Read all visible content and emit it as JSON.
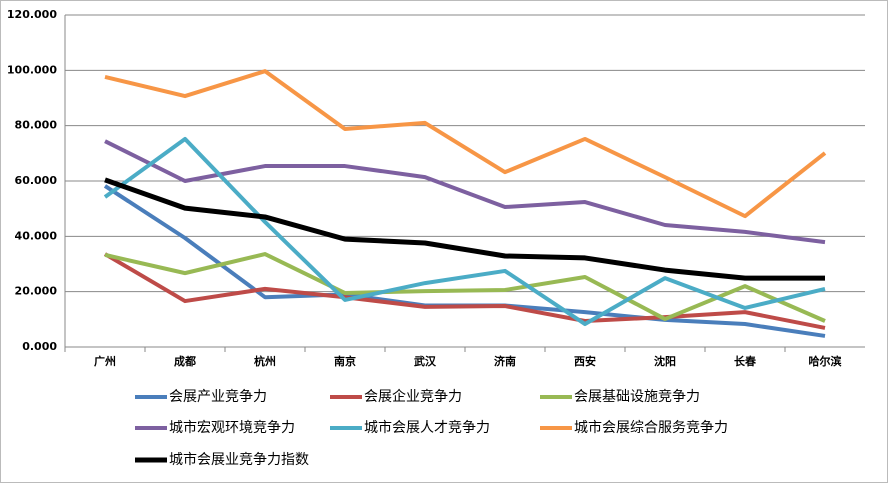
{
  "chart_data": {
    "type": "line",
    "categories": [
      "广州",
      "成都",
      "杭州",
      "南京",
      "武汉",
      "济南",
      "西安",
      "沈阳",
      "长春",
      "哈尔滨"
    ],
    "series": [
      {
        "name": "会展产业竞争力",
        "color": "#4a7ebb",
        "values": [
          58.2,
          39.4,
          18,
          19,
          15,
          15,
          12.6,
          9.8,
          8.3,
          4
        ]
      },
      {
        "name": "会展企业竞争力",
        "color": "#be4b48",
        "values": [
          33.6,
          16.6,
          21,
          18,
          14.5,
          14.8,
          9.4,
          10.8,
          12.6,
          6.9
        ]
      },
      {
        "name": "会展基础设施竞争力",
        "color": "#98b954",
        "values": [
          33.3,
          26.7,
          33.6,
          19.5,
          20.2,
          20.6,
          25.3,
          10.1,
          22,
          9.4
        ]
      },
      {
        "name": "城市宏观环境竞争力",
        "color": "#7d60a0",
        "values": [
          74.4,
          60,
          65.4,
          65.4,
          61.4,
          50.6,
          52.4,
          44.1,
          41.6,
          37.9
        ]
      },
      {
        "name": "城市会展人才竞争力",
        "color": "#4bacc6",
        "values": [
          54.2,
          75.2,
          45.2,
          17,
          23.1,
          27.5,
          8.3,
          24.9,
          14.1,
          21
        ]
      },
      {
        "name": "城市会展综合服务竞争力",
        "color": "#f79646",
        "values": [
          97.6,
          90.7,
          99.7,
          78.8,
          81,
          63.2,
          75.2,
          61.4,
          47.3,
          70.1
        ]
      },
      {
        "name": "城市会展业竞争力指数",
        "color": "#000000",
        "values": [
          60.4,
          50.2,
          47,
          39,
          37.6,
          32.9,
          32.2,
          27.8,
          24.9,
          24.9
        ]
      }
    ],
    "ylim": [
      0,
      120
    ],
    "yticks": [
      {
        "value": 0,
        "label": "0.000"
      },
      {
        "value": 20,
        "label": "20.000"
      },
      {
        "value": 40,
        "label": "40.000"
      },
      {
        "value": 60,
        "label": "60.000"
      },
      {
        "value": 80,
        "label": "80.000"
      },
      {
        "value": 100,
        "label": "100.000"
      },
      {
        "value": 120,
        "label": "120.000"
      }
    ],
    "grid": true
  }
}
